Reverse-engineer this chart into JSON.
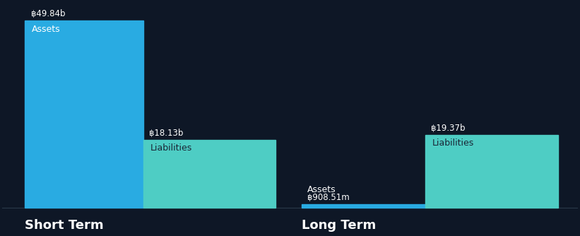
{
  "background_color": "#0e1726",
  "bar_color_assets": "#29abe2",
  "bar_color_liabilities": "#4ecdc4",
  "text_color_white": "#ffffff",
  "text_color_dark": "#1a2535",
  "short_term": {
    "assets_value": 49.84,
    "assets_label": "Assets",
    "assets_unit": "฿49.84b",
    "liabilities_value": 18.13,
    "liabilities_label": "Liabilities",
    "liabilities_unit": "฿18.13b",
    "x_label": "Short Term"
  },
  "long_term": {
    "assets_value": 0.90851,
    "assets_label": "Assets",
    "assets_unit": "฿908.51m",
    "liabilities_value": 19.37,
    "liabilities_label": "Liabilities",
    "liabilities_unit": "฿19.37b",
    "x_label": "Long Term"
  },
  "scale": 49.84,
  "figsize": [
    8.21,
    3.34
  ],
  "dpi": 100,
  "value_fontsize": 8.5,
  "label_fontsize": 9,
  "xlabel_fontsize": 13
}
